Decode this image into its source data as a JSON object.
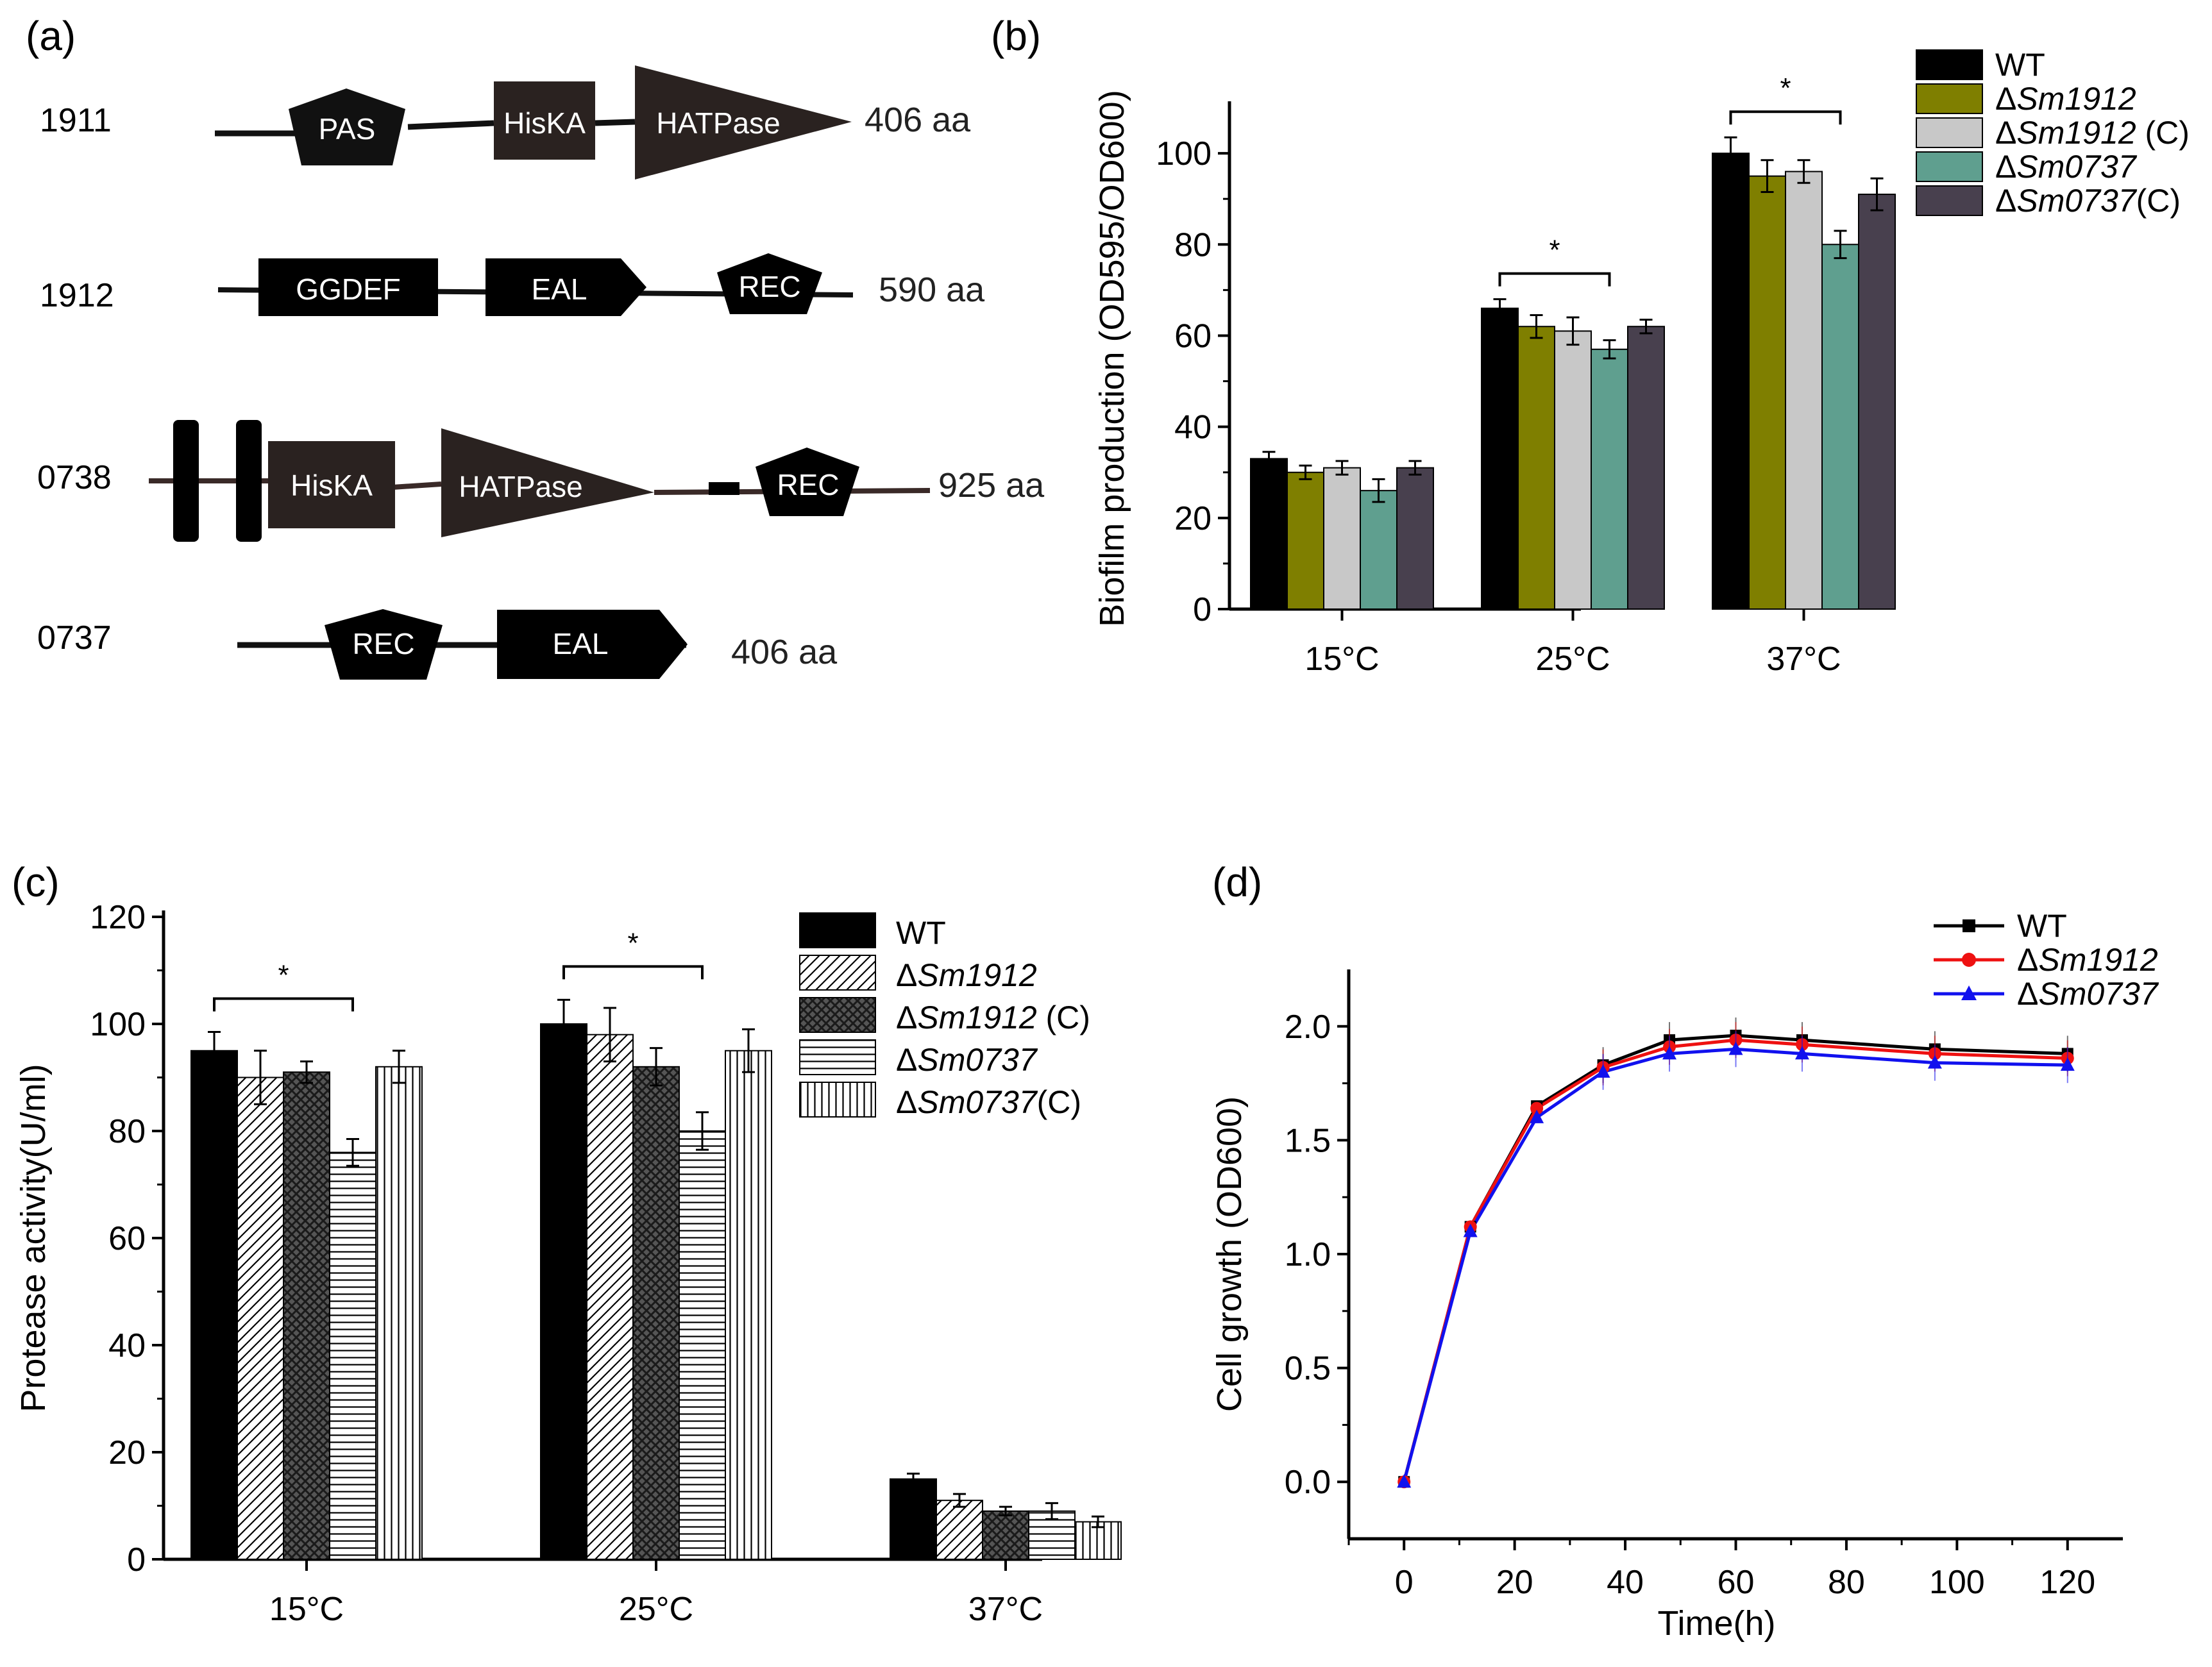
{
  "panels": {
    "a": {
      "label": "(a)",
      "proteins": [
        {
          "id": "1911",
          "length": "406 aa",
          "domains": [
            {
              "shape": "pentagon",
              "name": "PAS"
            },
            {
              "shape": "box",
              "name": "HisKA"
            },
            {
              "shape": "triangle",
              "name": "HATPase"
            }
          ]
        },
        {
          "id": "1912",
          "length": "590 aa",
          "domains": [
            {
              "shape": "box",
              "name": "GGDEF"
            },
            {
              "shape": "arrow",
              "name": "EAL"
            },
            {
              "shape": "pentagon",
              "name": "REC"
            }
          ]
        },
        {
          "id": "0738",
          "length": "925 aa",
          "domains": [
            {
              "shape": "box",
              "name": "HisKA"
            },
            {
              "shape": "triangle",
              "name": "HATPase"
            },
            {
              "shape": "pentagon",
              "name": "REC"
            }
          ]
        },
        {
          "id": "0737",
          "length": "406 aa",
          "domains": [
            {
              "shape": "pentagon",
              "name": "REC"
            },
            {
              "shape": "arrow",
              "name": "EAL"
            }
          ]
        }
      ]
    },
    "b": {
      "label": "(b)"
    },
    "c": {
      "label": "(c)"
    },
    "d": {
      "label": "(d)"
    }
  },
  "chart_data": [
    {
      "panel": "b",
      "type": "bar",
      "title": "",
      "xlabel": "",
      "ylabel": "Biofilm production (OD595/OD600)",
      "ylim": [
        0,
        110
      ],
      "yticks": [
        "0",
        "20",
        "40",
        "60",
        "80",
        "100"
      ],
      "categories": [
        "15°C",
        "25°C",
        "37°C"
      ],
      "legend_position": "top-right",
      "series": [
        {
          "name": "WT",
          "color": "#000000",
          "values": [
            33,
            66,
            100
          ],
          "errors": [
            1.5,
            2,
            3.5
          ]
        },
        {
          "name": "ΔSm1912",
          "color": "#7f7f00",
          "values": [
            30,
            62,
            95
          ],
          "errors": [
            1.5,
            2.5,
            3.5
          ]
        },
        {
          "name": "ΔSm1912 (C)",
          "color": "#c8c8c8",
          "values": [
            31,
            61,
            96
          ],
          "errors": [
            1.5,
            3,
            2.5
          ]
        },
        {
          "name": "ΔSm0737",
          "color": "#5f9f8f",
          "values": [
            26,
            57,
            80
          ],
          "errors": [
            2.5,
            2,
            3
          ]
        },
        {
          "name": "ΔSm0737(C)",
          "color": "#48404e",
          "values": [
            31,
            62,
            91
          ],
          "errors": [
            1.5,
            1.5,
            3.5
          ]
        }
      ],
      "significance": [
        {
          "category": "25°C",
          "label": "*"
        },
        {
          "category": "37°C",
          "label": "*"
        }
      ]
    },
    {
      "panel": "c",
      "type": "bar",
      "title": "",
      "xlabel": "",
      "ylabel": "Protease activity(U/ml)",
      "ylim": [
        0,
        120
      ],
      "yticks": [
        "0",
        "20",
        "40",
        "60",
        "80",
        "100",
        "120"
      ],
      "categories": [
        "15°C",
        "25°C",
        "37°C"
      ],
      "legend_position": "top-right",
      "series": [
        {
          "name": "WT",
          "pattern": "solid",
          "values": [
            95,
            100,
            15
          ],
          "errors": [
            3.5,
            4.5,
            1
          ]
        },
        {
          "name": "ΔSm1912",
          "pattern": "diagonal",
          "values": [
            90,
            98,
            11
          ],
          "errors": [
            5,
            5,
            1.2
          ]
        },
        {
          "name": "ΔSm1912 (C)",
          "pattern": "crosshatch",
          "values": [
            91,
            92,
            9
          ],
          "errors": [
            2,
            3.5,
            0.8
          ]
        },
        {
          "name": "ΔSm0737",
          "pattern": "horizontal",
          "values": [
            76,
            80,
            9
          ],
          "errors": [
            2.5,
            3.5,
            1.5
          ]
        },
        {
          "name": "ΔSm0737(C)",
          "pattern": "vertical",
          "values": [
            92,
            95,
            7
          ],
          "errors": [
            3,
            4,
            1
          ]
        }
      ],
      "significance": [
        {
          "category": "15°C",
          "label": "*"
        },
        {
          "category": "25°C",
          "label": "*"
        }
      ]
    },
    {
      "panel": "d",
      "type": "line",
      "title": "",
      "xlabel": "Time(h)",
      "ylabel": "Cell growth (OD600)",
      "xlim": [
        -10,
        130
      ],
      "ylim": [
        -0.25,
        2.25
      ],
      "xticks": [
        "0",
        "20",
        "40",
        "60",
        "80",
        "100",
        "120"
      ],
      "yticks": [
        "0.0",
        "0.5",
        "1.0",
        "1.5",
        "2.0"
      ],
      "legend_position": "top-right",
      "x": [
        0,
        12,
        24,
        36,
        48,
        60,
        72,
        96,
        120
      ],
      "series": [
        {
          "name": "WT",
          "color": "#000000",
          "marker": "square",
          "values": [
            0.0,
            1.12,
            1.65,
            1.83,
            1.94,
            1.96,
            1.94,
            1.9,
            1.88
          ]
        },
        {
          "name": "ΔSm1912",
          "color": "#ee1111",
          "marker": "circle",
          "values": [
            0.0,
            1.12,
            1.64,
            1.82,
            1.91,
            1.94,
            1.92,
            1.88,
            1.86
          ]
        },
        {
          "name": "ΔSm0737",
          "color": "#1111ee",
          "marker": "triangle",
          "values": [
            0.0,
            1.1,
            1.6,
            1.8,
            1.88,
            1.9,
            1.88,
            1.84,
            1.83
          ]
        }
      ]
    }
  ]
}
